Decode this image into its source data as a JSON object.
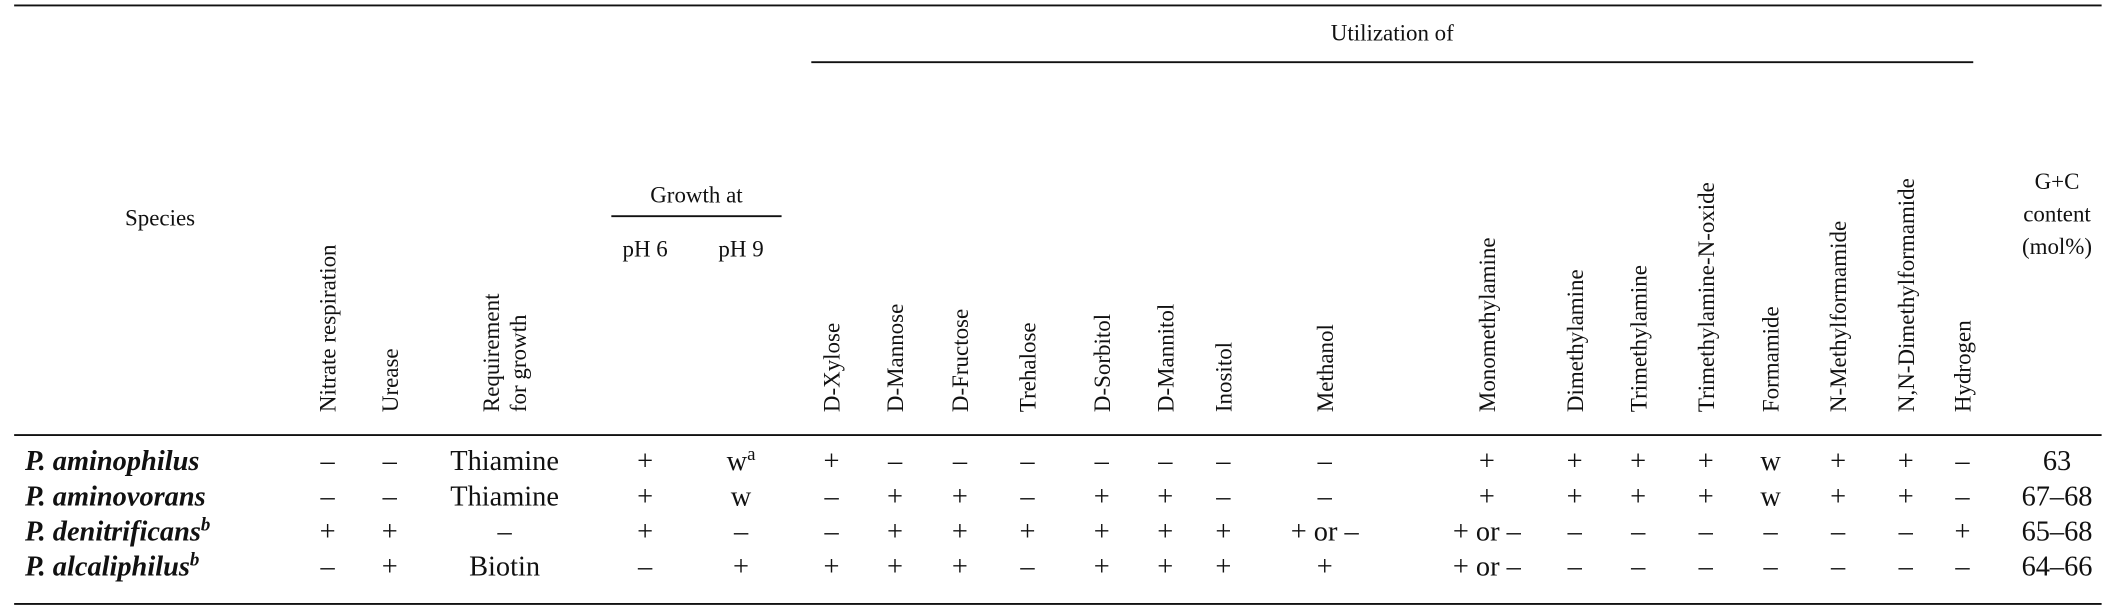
{
  "table": {
    "header": {
      "species": "Species",
      "growth_at": "Growth at",
      "utilization_of": "Utilization of",
      "columns": [
        [
          "Nitrate respiration"
        ],
        [
          "Urease"
        ],
        [
          "Requirement",
          "for growth"
        ],
        [
          "pH 6"
        ],
        [
          "pH 9"
        ],
        [
          "D-Xylose"
        ],
        [
          "D-Mannose"
        ],
        [
          "D-Fructose"
        ],
        [
          "Trehalose"
        ],
        [
          "D-Sorbitol"
        ],
        [
          "D-Mannitol"
        ],
        [
          "Inositol"
        ],
        [
          "Methanol"
        ],
        [
          "Monomethylamine"
        ],
        [
          "Dimethylamine"
        ],
        [
          "Trimethylamine"
        ],
        [
          "Trimethylamine-N-oxide"
        ],
        [
          "Formamide"
        ],
        [
          "N-Methylformamide"
        ],
        [
          "N,N-Dimethylformamide"
        ],
        [
          "Hydrogen"
        ],
        [
          "G+C",
          "content",
          "(mol%)"
        ]
      ]
    },
    "rows": [
      {
        "species": "P. aminophilus",
        "cells": [
          "–",
          "–",
          "Thiamine",
          "+",
          {
            "text": "w",
            "sup": "a"
          },
          "+",
          "–",
          "–",
          "–",
          "–",
          "–",
          "–",
          "–",
          "+",
          "+",
          "+",
          "+",
          "w",
          "+",
          "+",
          "–",
          "63"
        ]
      },
      {
        "species": "P. aminovorans",
        "cells": [
          "–",
          "–",
          "Thiamine",
          "+",
          "w",
          "–",
          "+",
          "+",
          "–",
          "+",
          "+",
          "–",
          "–",
          "+",
          "+",
          "+",
          "+",
          "w",
          "+",
          "+",
          "–",
          "67–68"
        ]
      },
      {
        "species": {
          "text": "P. denitrificans",
          "sup": "b"
        },
        "cells": [
          "+",
          "+",
          "–",
          "+",
          "–",
          "–",
          "+",
          "+",
          "+",
          "+",
          "+",
          "+",
          "+ or –",
          "+ or –",
          "–",
          "–",
          "–",
          "–",
          "–",
          "–",
          "+",
          "65–68"
        ]
      },
      {
        "species": {
          "text": "P. alcaliphilus",
          "sup": "b"
        },
        "cells": [
          "–",
          "+",
          "Biotin",
          "–",
          "+",
          "+",
          "+",
          "+",
          "–",
          "+",
          "+",
          "+",
          "+",
          "+ or –",
          "–",
          "–",
          "–",
          "–",
          "–",
          "–",
          "–",
          "64–66"
        ]
      }
    ]
  }
}
